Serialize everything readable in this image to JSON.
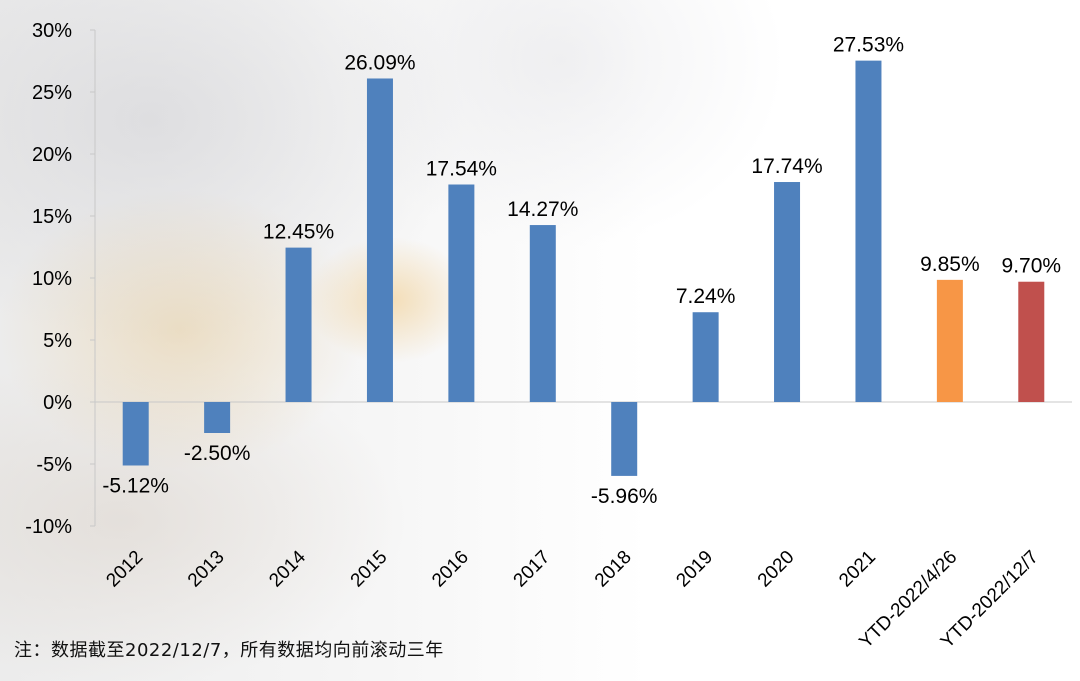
{
  "chart_data": {
    "type": "bar",
    "categories": [
      "2012",
      "2013",
      "2014",
      "2015",
      "2016",
      "2017",
      "2018",
      "2019",
      "2020",
      "2021",
      "YTD-2022/4/26",
      "YTD-2022/12/7"
    ],
    "values": [
      -5.12,
      -2.5,
      12.45,
      26.09,
      17.54,
      14.27,
      -5.96,
      7.24,
      17.74,
      27.53,
      9.85,
      9.7
    ],
    "data_labels": [
      "-5.12%",
      "-2.50%",
      "12.45%",
      "26.09%",
      "17.54%",
      "14.27%",
      "-5.96%",
      "7.24%",
      "17.74%",
      "27.53%",
      "9.85%",
      "9.70%"
    ],
    "bar_colors": [
      "#4F81BD",
      "#4F81BD",
      "#4F81BD",
      "#4F81BD",
      "#4F81BD",
      "#4F81BD",
      "#4F81BD",
      "#4F81BD",
      "#4F81BD",
      "#4F81BD",
      "#F79646",
      "#C0504D"
    ],
    "ylim": [
      -10,
      30
    ],
    "yticks": [
      -10,
      -5,
      0,
      5,
      10,
      15,
      20,
      25,
      30
    ],
    "ytick_labels": [
      "-10%",
      "-5%",
      "0%",
      "5%",
      "10%",
      "15%",
      "20%",
      "25%",
      "30%"
    ],
    "grid": false,
    "legend": "none"
  },
  "footnote": "注：数据截至2022/12/7，所有数据均向前滚动三年"
}
